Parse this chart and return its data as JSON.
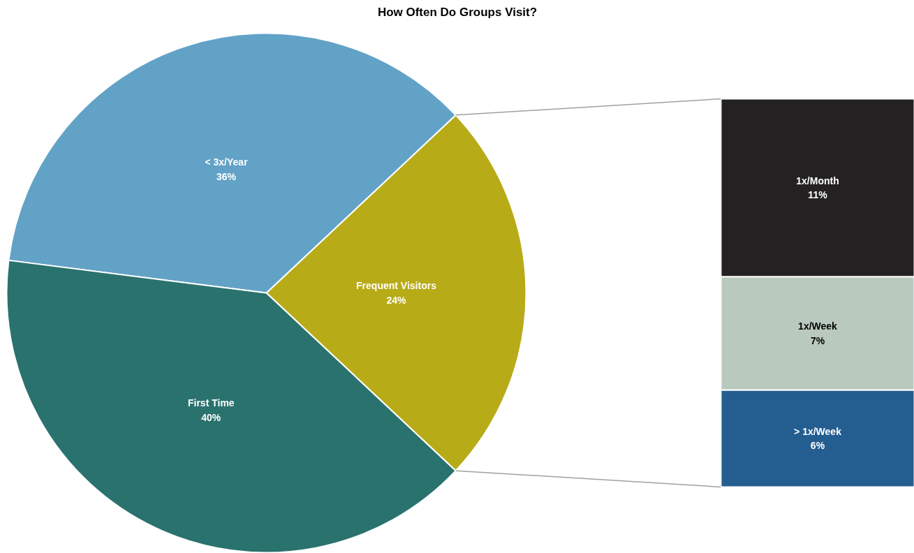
{
  "chart_data": [
    {
      "type": "pie",
      "title": "How Often Do Groups Visit?",
      "categories": [
        "Frequent Visitors",
        "< 3x/Year",
        "First Time"
      ],
      "values": [
        24,
        36,
        40
      ],
      "colors": [
        "#b8ab18",
        "#62a2c7",
        "#2a726e"
      ],
      "value_labels": [
        "24%",
        "36%",
        "40%"
      ]
    },
    {
      "type": "bar",
      "stacked": true,
      "categories": [
        null
      ],
      "series": [
        {
          "name": "> 1x/Week",
          "color": "#245d90",
          "values": [
            6
          ],
          "value_labels": [
            "6%"
          ]
        },
        {
          "name": "1x/Week",
          "color": "#b9c9be",
          "values": [
            7
          ],
          "value_labels": [
            "7%"
          ]
        },
        {
          "name": "1x/Month",
          "color": "#242122",
          "values": [
            11
          ],
          "value_labels": [
            "11%"
          ]
        }
      ]
    }
  ]
}
